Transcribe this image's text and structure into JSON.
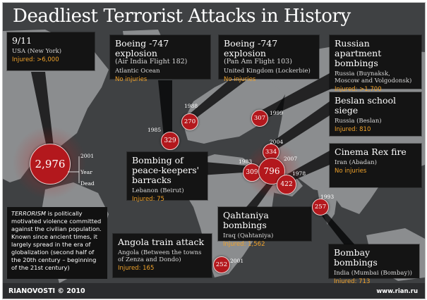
{
  "title": "Deadliest Terrorist Attacks in History",
  "colors": {
    "ocean": "#3f4143",
    "land": "#8a8c8e",
    "circle": "#b3181d",
    "injured": "#f0a22a",
    "card": "#141414"
  },
  "attacks": [
    {
      "title": "9/11",
      "location": "USA (New York)",
      "injured": "Injured: >6,000",
      "deaths": "2,976",
      "year": "2001"
    },
    {
      "title": "Boeing -747 explosion",
      "subtitle": "(Air India Flight 182)",
      "location": "Atlantic Ocean",
      "injured": "No injuries",
      "deaths": "329",
      "year": "1985"
    },
    {
      "title": "Boeing -747 explosion",
      "subtitle": "(Pan Am Flight 103)",
      "location": "United Kingdom (Lockerbie)",
      "injured": "No injuries",
      "deaths": "270",
      "year": "1988"
    },
    {
      "title": "Russian apartment bombings",
      "location": "Russia (Buynaksk, Moscow and Volgodonsk)",
      "injured": "Injured: >1,700",
      "deaths": "307",
      "year": "1999"
    },
    {
      "title": "Beslan school siege",
      "location": "Russia (Beslan)",
      "injured": "Injured: 810",
      "deaths": "334",
      "year": "2004"
    },
    {
      "title": "Cinema Rex fire",
      "location": "Iran (Abadan)",
      "injured": "No injuries",
      "deaths": "422",
      "year": "1978"
    },
    {
      "title": "Bombing of peace-keepers' barracks",
      "location": "Lebanon (Beirut)",
      "injured": "Injured: 75",
      "deaths": "309",
      "year": "1983"
    },
    {
      "title": "Qahtaniya bombings",
      "location": "Iraq (Qahtaniya)",
      "injured": "Injured: 1,562",
      "deaths": "796",
      "year": "2007"
    },
    {
      "title": "Angola train attack",
      "location": "Angola (Between the towns of Zenza and Dondo)",
      "injured": "Injured: 165",
      "deaths": "252",
      "year": "2001"
    },
    {
      "title": "Bombay bombings",
      "location": "India (Mumbai (Bombay))",
      "injured": "Injured: 713",
      "deaths": "257",
      "year": "1993"
    }
  ],
  "legend": {
    "year": "Year",
    "dead": "Dead"
  },
  "note": {
    "term": "TERRORISM",
    "text": " is politically motivated violence committed against the civilian population. Known since ancient times, it largely spread in the era of globalization (second half of the 20th century – beginning of the 21st century)"
  },
  "footer": {
    "brand": "RIANOVOSTI © 2010",
    "url": "www.rian.ru"
  }
}
